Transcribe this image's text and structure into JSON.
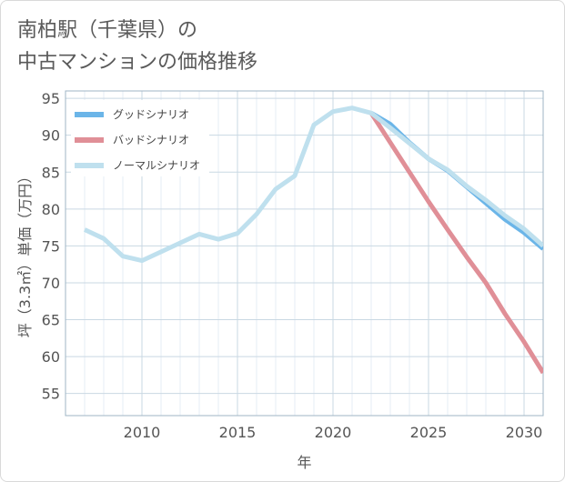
{
  "title": {
    "line1": "南柏駅（千葉県）の",
    "line2": "中古マンションの価格推移"
  },
  "chart_data": {
    "type": "line",
    "xlabel": "年",
    "ylabel": "坪（3.3㎡）単価（万円）",
    "xlim": [
      2006,
      2031
    ],
    "ylim": [
      52,
      96
    ],
    "x_ticks": [
      2010,
      2015,
      2020,
      2025,
      2030
    ],
    "y_ticks": [
      55,
      60,
      65,
      70,
      75,
      80,
      85,
      90,
      95
    ],
    "grid": true,
    "legend_position": "top-left",
    "series": [
      {
        "name": "グッドシナリオ",
        "color": "#6bb5e8",
        "x": [
          2022,
          2023,
          2024,
          2025,
          2026,
          2027,
          2028,
          2029,
          2030,
          2031
        ],
        "values": [
          93.0,
          91.5,
          89.0,
          86.8,
          85.2,
          83.0,
          80.8,
          78.6,
          76.8,
          74.6
        ]
      },
      {
        "name": "バッドシナリオ",
        "color": "#e08f97",
        "x": [
          2022,
          2023,
          2024,
          2025,
          2026,
          2027,
          2028,
          2029,
          2030,
          2031
        ],
        "values": [
          93.0,
          89.0,
          85.0,
          81.0,
          77.2,
          73.5,
          70.0,
          65.8,
          62.0,
          57.8
        ]
      },
      {
        "name": "ノーマルシナリオ",
        "color": "#bfe0ee",
        "x": [
          2007,
          2008,
          2009,
          2010,
          2011,
          2012,
          2013,
          2014,
          2015,
          2016,
          2017,
          2018,
          2019,
          2020,
          2021,
          2022,
          2023,
          2024,
          2025,
          2026,
          2027,
          2028,
          2029,
          2030,
          2031
        ],
        "values": [
          77.2,
          76.0,
          73.6,
          73.0,
          74.2,
          75.4,
          76.6,
          75.9,
          76.7,
          79.3,
          82.7,
          84.5,
          91.4,
          93.2,
          93.7,
          93.0,
          91.0,
          88.9,
          86.8,
          85.3,
          83.1,
          81.2,
          79.1,
          77.3,
          75.0
        ]
      }
    ]
  }
}
